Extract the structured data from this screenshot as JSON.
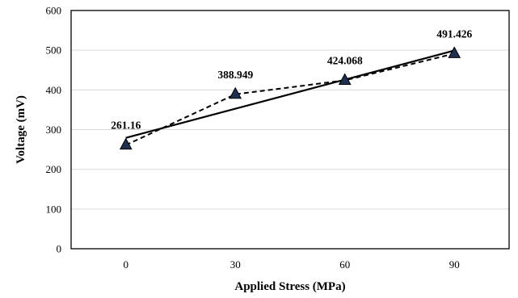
{
  "chart_data": {
    "type": "line",
    "x": [
      0,
      30,
      60,
      90
    ],
    "series": [
      {
        "values": [
          261.16,
          388.949,
          424.068,
          491.426
        ],
        "style": "dashed",
        "marker": "triangle",
        "marker_color": "#1f2f4f",
        "data_labels": [
          "261.16",
          "388.949",
          "424.068",
          "491.426"
        ]
      }
    ],
    "trendline": {
      "type": "linear",
      "x": [
        0,
        90
      ],
      "y": [
        279.4,
        499.1
      ],
      "style": "solid"
    },
    "title": "",
    "xlabel": "Applied Stress (MPa)",
    "ylabel": "Voltage (mV)",
    "xlim": [
      -15,
      105
    ],
    "ylim": [
      0,
      600
    ],
    "x_ticks": [
      "0",
      "30",
      "60",
      "90"
    ],
    "y_ticks": [
      "0",
      "100",
      "200",
      "300",
      "400",
      "500",
      "600"
    ],
    "grid": "horizontal",
    "legend": "none"
  }
}
